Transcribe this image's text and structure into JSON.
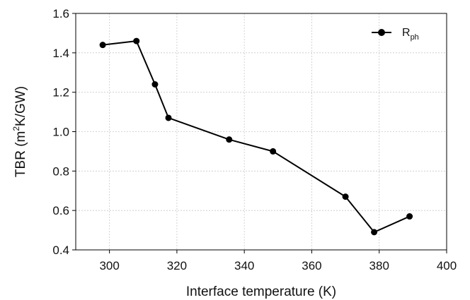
{
  "chart_data": {
    "type": "line",
    "xlabel": "Interface temperature (K)",
    "ylabel": {
      "main": "TBR (m",
      "sup": "2",
      "rest": "K/GW)"
    },
    "xlim": [
      290,
      400
    ],
    "ylim": [
      0.4,
      1.6
    ],
    "xticks": [
      300,
      320,
      340,
      360,
      380,
      400
    ],
    "yticks": [
      "0.4",
      "0.6",
      "0.8",
      "1.0",
      "1.2",
      "1.4",
      "1.6"
    ],
    "grid": true,
    "legend_position": "top-right",
    "series": [
      {
        "name": {
          "main": "R",
          "sub": "ph"
        },
        "color": "#000000",
        "marker": "circle",
        "x": [
          298,
          308,
          313.5,
          317.5,
          335.5,
          348.5,
          370,
          378.5,
          389
        ],
        "y": [
          1.44,
          1.46,
          1.24,
          1.07,
          0.96,
          0.9,
          0.67,
          0.49,
          0.57
        ]
      }
    ]
  }
}
